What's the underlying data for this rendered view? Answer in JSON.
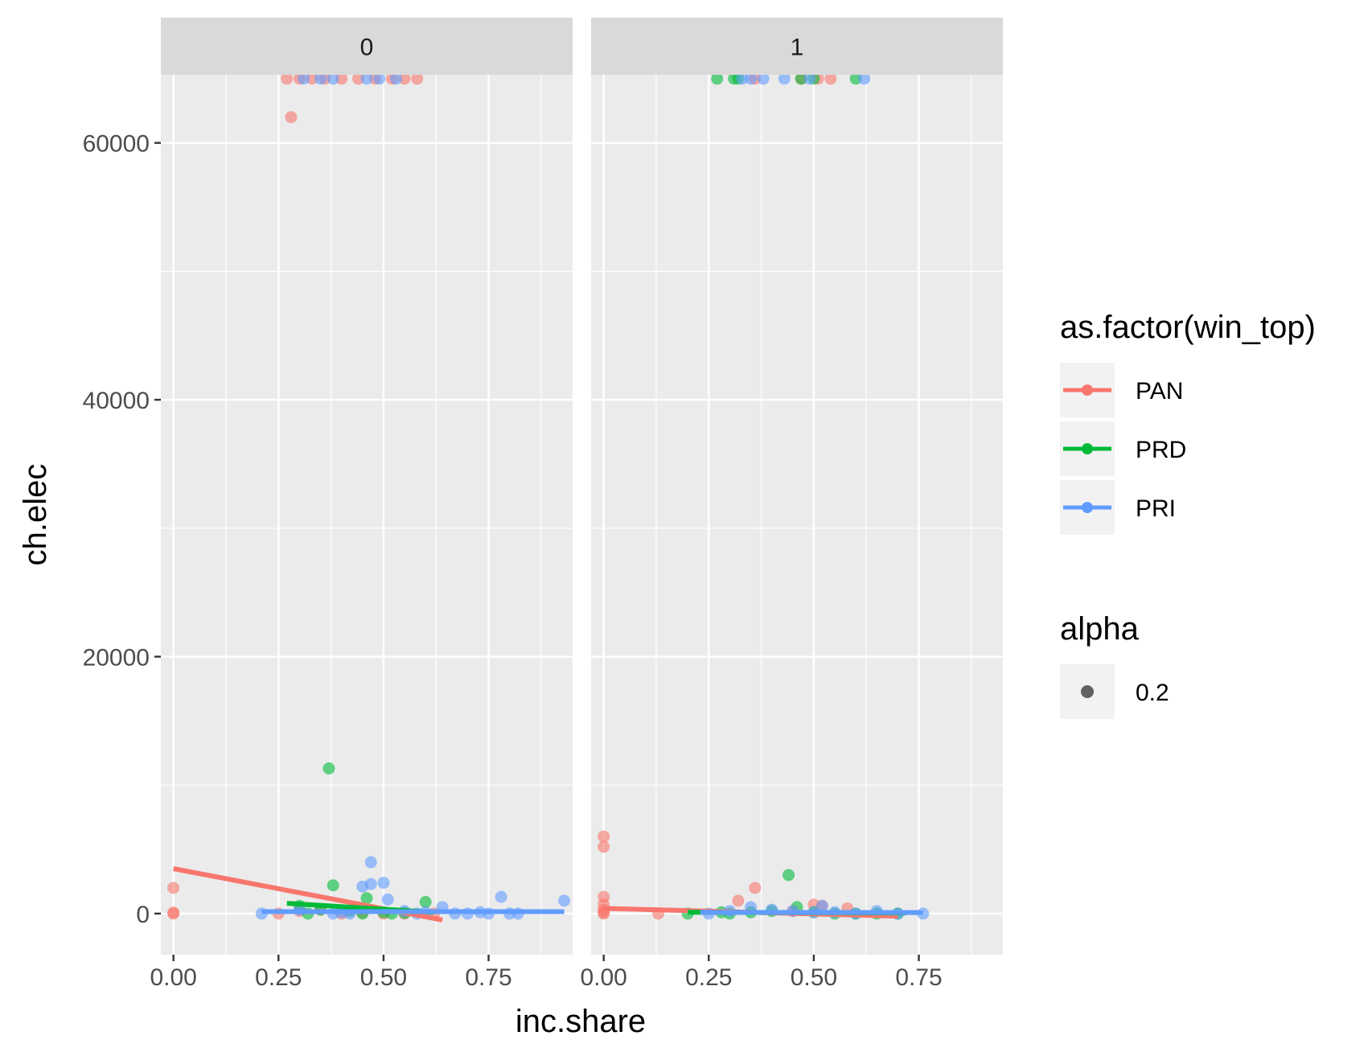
{
  "chart_data": {
    "type": "scatter",
    "facet_variable": "inc",
    "panels": [
      {
        "strip_label": "0",
        "series": [
          {
            "name": "PAN",
            "points": [
              [
                0.0,
                0
              ],
              [
                0.0,
                80
              ],
              [
                0.0,
                2000
              ],
              [
                0.25,
                0
              ],
              [
                0.28,
                62000
              ],
              [
                0.3,
                200
              ],
              [
                0.35,
                300
              ],
              [
                0.4,
                0
              ],
              [
                0.45,
                100
              ],
              [
                0.5,
                0
              ],
              [
                0.55,
                0
              ],
              [
                0.62,
                0
              ],
              [
                0.27,
                65000
              ],
              [
                0.3,
                65000
              ],
              [
                0.33,
                65000
              ],
              [
                0.36,
                65000
              ],
              [
                0.4,
                65000
              ],
              [
                0.44,
                65000
              ],
              [
                0.48,
                65000
              ],
              [
                0.52,
                65000
              ],
              [
                0.55,
                65000
              ],
              [
                0.58,
                65000
              ]
            ],
            "fit_line": [
              [
                0.0,
                3500
              ],
              [
                0.64,
                -500
              ]
            ]
          },
          {
            "name": "PRD",
            "points": [
              [
                0.37,
                11300
              ],
              [
                0.38,
                2200
              ],
              [
                0.46,
                1200
              ],
              [
                0.6,
                900
              ],
              [
                0.3,
                600
              ],
              [
                0.35,
                300
              ],
              [
                0.42,
                200
              ],
              [
                0.5,
                100
              ],
              [
                0.55,
                50
              ],
              [
                0.45,
                0
              ],
              [
                0.52,
                0
              ],
              [
                0.32,
                0
              ]
            ],
            "fit_line": [
              [
                0.27,
                800
              ],
              [
                0.62,
                100
              ]
            ]
          },
          {
            "name": "PRI",
            "points": [
              [
                0.21,
                0
              ],
              [
                0.3,
                300
              ],
              [
                0.4,
                100
              ],
              [
                0.45,
                2100
              ],
              [
                0.47,
                2300
              ],
              [
                0.47,
                4000
              ],
              [
                0.5,
                2400
              ],
              [
                0.51,
                1100
              ],
              [
                0.55,
                200
              ],
              [
                0.6,
                100
              ],
              [
                0.64,
                500
              ],
              [
                0.67,
                0
              ],
              [
                0.7,
                0
              ],
              [
                0.73,
                100
              ],
              [
                0.75,
                0
              ],
              [
                0.78,
                1300
              ],
              [
                0.8,
                0
              ],
              [
                0.82,
                0
              ],
              [
                0.93,
                1000
              ],
              [
                0.38,
                0
              ],
              [
                0.42,
                0
              ],
              [
                0.58,
                0
              ],
              [
                0.31,
                65000
              ],
              [
                0.35,
                65000
              ],
              [
                0.38,
                65000
              ],
              [
                0.46,
                65000
              ],
              [
                0.49,
                65000
              ],
              [
                0.53,
                65000
              ]
            ],
            "fit_line": [
              [
                0.21,
                150
              ],
              [
                0.93,
                150
              ]
            ]
          }
        ]
      },
      {
        "strip_label": "1",
        "series": [
          {
            "name": "PAN",
            "points": [
              [
                0.0,
                6000
              ],
              [
                0.0,
                5200
              ],
              [
                0.0,
                1300
              ],
              [
                0.0,
                700
              ],
              [
                0.0,
                300
              ],
              [
                0.0,
                0
              ],
              [
                0.0,
                100
              ],
              [
                0.13,
                0
              ],
              [
                0.32,
                1000
              ],
              [
                0.36,
                2000
              ],
              [
                0.5,
                700
              ],
              [
                0.52,
                600
              ],
              [
                0.58,
                400
              ],
              [
                0.45,
                200
              ],
              [
                0.36,
                65000
              ],
              [
                0.47,
                65000
              ],
              [
                0.51,
                65000
              ],
              [
                0.54,
                65000
              ]
            ],
            "fit_line": [
              [
                0.0,
                400
              ],
              [
                0.7,
                -200
              ]
            ]
          },
          {
            "name": "PRD",
            "points": [
              [
                0.2,
                0
              ],
              [
                0.28,
                100
              ],
              [
                0.3,
                0
              ],
              [
                0.35,
                100
              ],
              [
                0.4,
                200
              ],
              [
                0.44,
                3000
              ],
              [
                0.46,
                500
              ],
              [
                0.5,
                100
              ],
              [
                0.55,
                0
              ],
              [
                0.6,
                0
              ],
              [
                0.65,
                0
              ],
              [
                0.7,
                0
              ],
              [
                0.27,
                65000
              ],
              [
                0.31,
                65000
              ],
              [
                0.32,
                65000
              ],
              [
                0.47,
                65000
              ],
              [
                0.5,
                65000
              ],
              [
                0.6,
                65000
              ]
            ],
            "fit_line": [
              [
                0.2,
                100
              ],
              [
                0.72,
                50
              ]
            ]
          },
          {
            "name": "PRI",
            "points": [
              [
                0.25,
                0
              ],
              [
                0.3,
                200
              ],
              [
                0.35,
                500
              ],
              [
                0.4,
                300
              ],
              [
                0.45,
                200
              ],
              [
                0.52,
                600
              ],
              [
                0.55,
                100
              ],
              [
                0.6,
                0
              ],
              [
                0.65,
                200
              ],
              [
                0.7,
                0
              ],
              [
                0.76,
                0
              ],
              [
                0.5,
                100
              ],
              [
                0.33,
                65000
              ],
              [
                0.35,
                65000
              ],
              [
                0.38,
                65000
              ],
              [
                0.43,
                65000
              ],
              [
                0.49,
                65000
              ],
              [
                0.62,
                65000
              ]
            ],
            "fit_line": [
              [
                0.23,
                100
              ],
              [
                0.76,
                80
              ]
            ]
          }
        ]
      }
    ],
    "x_label": "inc.share",
    "y_label": "ch.elec",
    "xlim": [
      -0.03,
      0.95
    ],
    "ylim": [
      -3200,
      65300
    ],
    "x_ticks": [
      0.0,
      0.25,
      0.5,
      0.75
    ],
    "x_tick_labels": [
      "0.00",
      "0.25",
      "0.50",
      "0.75"
    ],
    "y_ticks": [
      0,
      20000,
      40000,
      60000
    ],
    "y_tick_labels": [
      "0",
      "20000",
      "40000",
      "60000"
    ],
    "grid": true,
    "legend": {
      "position": "right",
      "color_title": "as.factor(win_top)",
      "color_entries": [
        {
          "label": "PAN",
          "color": "#F8766D"
        },
        {
          "label": "PRD",
          "color": "#00BA38"
        },
        {
          "label": "PRI",
          "color": "#619CFF"
        }
      ],
      "alpha_title": "alpha",
      "alpha_entries": [
        {
          "label": "0.2"
        }
      ]
    },
    "colors": {
      "panel_background": "#EBEBEB",
      "grid": "#FFFFFF",
      "strip_background": "#D9D9D9",
      "legend_key_background": "#F2F2F2"
    }
  }
}
